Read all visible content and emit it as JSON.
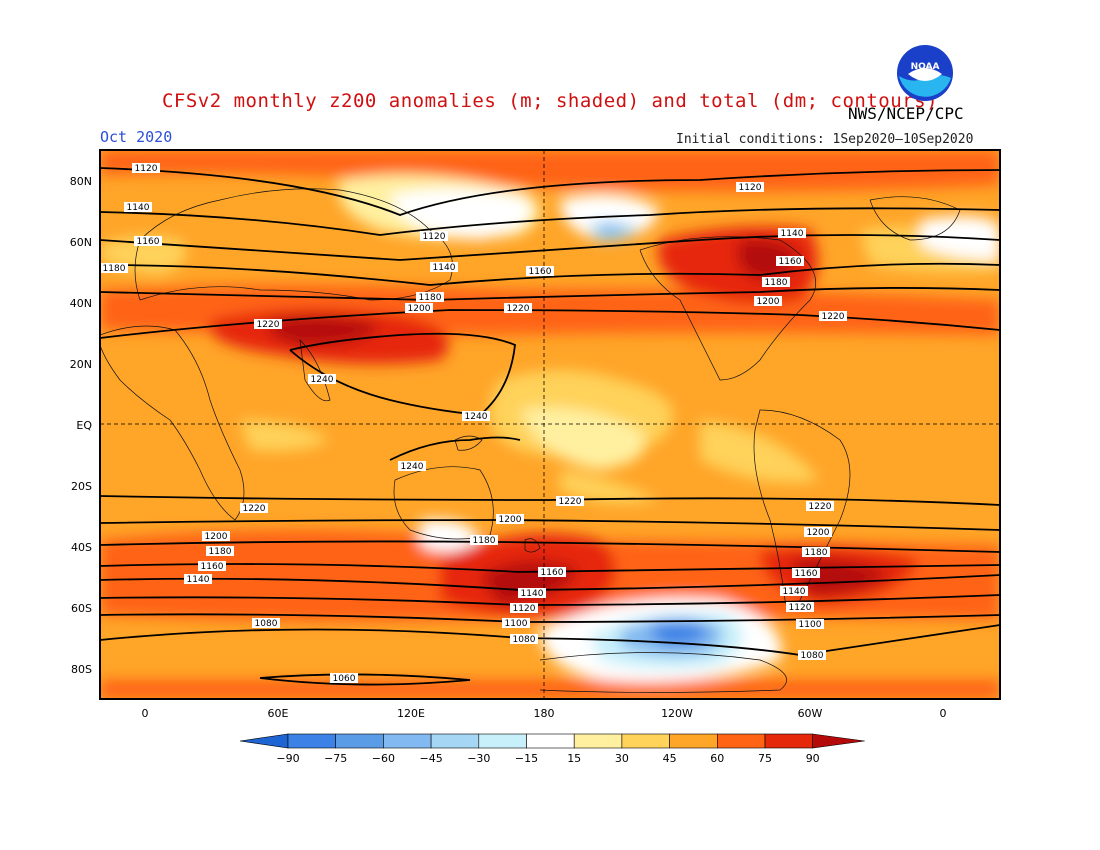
{
  "title": "CFSv2 monthly z200 anomalies (m; shaded) and total (dm; contours)",
  "month_label": "Oct 2020",
  "organization": "NWS/NCEP/CPC",
  "initial_conditions": "Initial conditions: 1Sep2020–10Sep2020",
  "logo_text": "NOAA",
  "lat_labels": [
    "80N",
    "60N",
    "40N",
    "20N",
    "EQ",
    "20S",
    "40S",
    "60S",
    "80S"
  ],
  "lon_labels": [
    "0",
    "60E",
    "120E",
    "180",
    "120W",
    "60W",
    "0"
  ],
  "colorbar": {
    "ticks": [
      "−90",
      "−75",
      "−60",
      "−45",
      "−30",
      "−15",
      "15",
      "30",
      "45",
      "60",
      "75",
      "90"
    ],
    "colors": [
      "#1e64d2",
      "#3c82e6",
      "#5a9ce6",
      "#82b9f0",
      "#a5d7f5",
      "#c8f0fa",
      "#ffffff",
      "#fff0a0",
      "#ffd25a",
      "#ffa528",
      "#ff6414",
      "#e6280a",
      "#b40a0a"
    ]
  },
  "contour_labels": {
    "c1060": "1060",
    "c1080": "1080",
    "c1100": "1100",
    "c1120": "1120",
    "c1140": "1140",
    "c1160": "1160",
    "c1180": "1180",
    "c1200": "1200",
    "c1220": "1220",
    "c1240": "1240"
  }
}
